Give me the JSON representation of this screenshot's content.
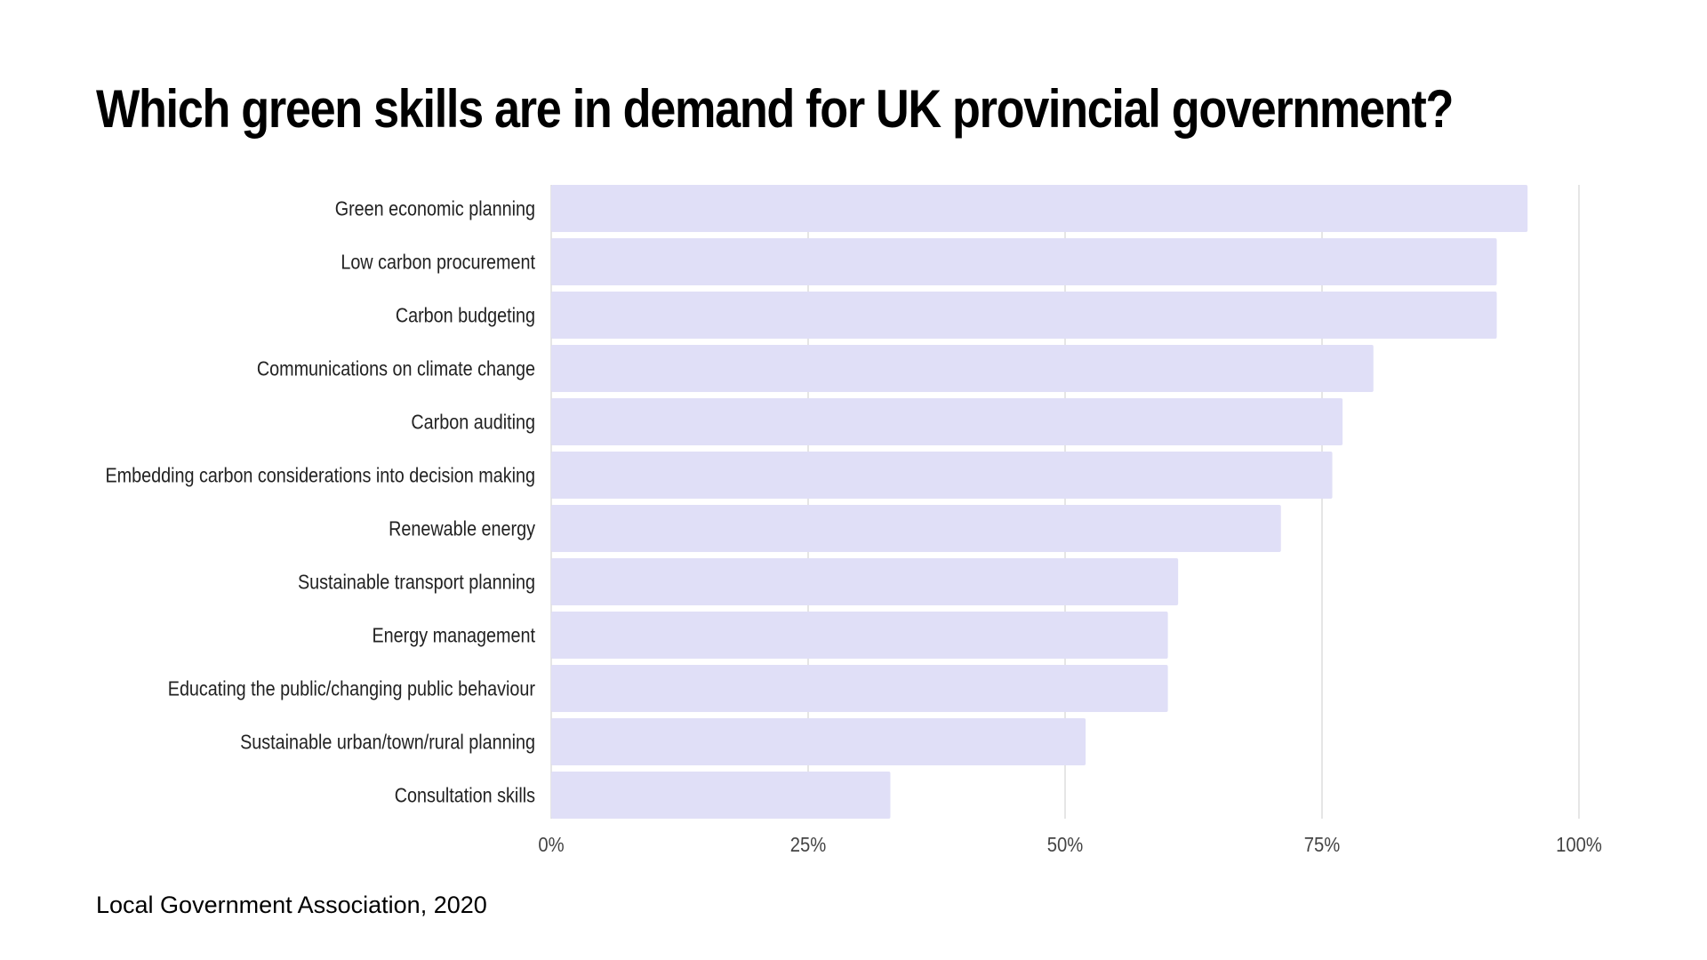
{
  "chart_data": {
    "type": "bar",
    "orientation": "horizontal",
    "title": "Which green skills are in demand for UK provincial government?",
    "categories": [
      "Green economic planning",
      "Low carbon procurement",
      "Carbon budgeting",
      "Communications on climate change",
      "Carbon auditing",
      "Embedding carbon considerations into decision making",
      "Renewable energy",
      "Sustainable transport planning",
      "Energy management",
      "Educating the public/changing public behaviour",
      "Sustainable urban/town/rural planning",
      "Consultation skills"
    ],
    "values": [
      95,
      92,
      92,
      80,
      77,
      76,
      71,
      61,
      60,
      60,
      52,
      33
    ],
    "xlim": [
      0,
      100
    ],
    "x_ticks": [
      0,
      25,
      50,
      75,
      100
    ],
    "x_tick_labels": [
      "0%",
      "25%",
      "50%",
      "75%",
      "100%"
    ],
    "xlabel": "",
    "ylabel": "",
    "grid": true,
    "legend": "none",
    "colors": {
      "bar": "#e0dff7",
      "grid": "#d4d4d4"
    }
  },
  "source": "Local Government Association, 2020"
}
